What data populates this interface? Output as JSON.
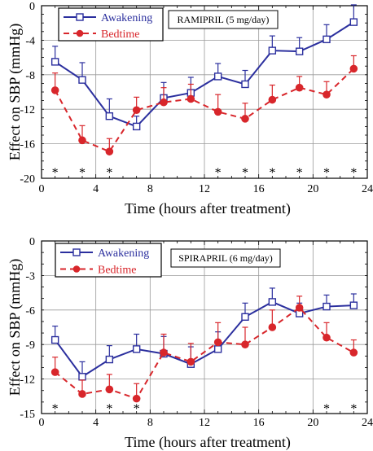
{
  "colors": {
    "awakening": "#2b2f9e",
    "bedtime": "#d8262b",
    "grid": "#9a9a9a",
    "axis": "#000000"
  },
  "chart_data": [
    {
      "type": "line",
      "title": "RAMIPRIL (5 mg/day)",
      "xlabel": "Time (hours after treatment)",
      "ylabel": "Effect on SBP (mmHg)",
      "xlim": [
        0,
        24
      ],
      "ylim": [
        -20,
        0
      ],
      "xticks": [
        "0",
        "4",
        "8",
        "12",
        "16",
        "20",
        "24"
      ],
      "yticks": [
        "0",
        "-4",
        "-8",
        "-12",
        "-16",
        "-20"
      ],
      "grid": true,
      "legend_position": "top-left",
      "x": [
        1,
        3,
        5,
        7,
        9,
        11,
        13,
        15,
        17,
        19,
        21,
        23
      ],
      "series": [
        {
          "name": "Awakening",
          "marker": "open-square",
          "line": "solid",
          "values": [
            -6.5,
            -8.6,
            -12.8,
            -14.0,
            -10.7,
            -10.1,
            -8.2,
            -9.1,
            -5.2,
            -5.3,
            -3.9,
            -1.9
          ],
          "errors": [
            1.8,
            2.0,
            2.0,
            1.2,
            1.8,
            1.8,
            1.5,
            1.6,
            1.7,
            1.6,
            1.7,
            2.0
          ]
        },
        {
          "name": "Bedtime",
          "marker": "filled-circle",
          "line": "dashed",
          "values": [
            -9.8,
            -15.6,
            -16.9,
            -12.1,
            -11.2,
            -10.8,
            -12.3,
            -13.1,
            -10.9,
            -9.5,
            -10.3,
            -7.3
          ],
          "errors": [
            2.0,
            1.7,
            1.5,
            1.5,
            1.7,
            1.7,
            2.0,
            1.8,
            1.7,
            1.3,
            1.5,
            1.5
          ]
        }
      ],
      "significance_marker": "*",
      "significance_x": [
        1,
        3,
        5,
        13,
        15,
        17,
        19,
        21,
        23
      ]
    },
    {
      "type": "line",
      "title": "SPIRAPRIL (6 mg/day)",
      "xlabel": "Time (hours after treatment)",
      "ylabel": "Effect on SBP (mmHg)",
      "xlim": [
        0,
        24
      ],
      "ylim": [
        -15,
        0
      ],
      "xticks": [
        "0",
        "4",
        "8",
        "12",
        "16",
        "20",
        "24"
      ],
      "yticks": [
        "0",
        "-3",
        "-6",
        "-9",
        "-12",
        "-15"
      ],
      "grid": true,
      "legend_position": "top-left",
      "x": [
        1,
        3,
        5,
        7,
        9,
        11,
        13,
        15,
        17,
        19,
        21,
        23
      ],
      "series": [
        {
          "name": "Awakening",
          "marker": "open-square",
          "line": "solid",
          "values": [
            -8.6,
            -11.8,
            -10.3,
            -9.4,
            -9.8,
            -10.7,
            -9.4,
            -6.6,
            -5.3,
            -6.3,
            -5.7,
            -5.6
          ],
          "errors": [
            1.2,
            1.3,
            1.2,
            1.3,
            1.5,
            1.5,
            1.5,
            1.2,
            1.2,
            0.9,
            1.0,
            1.0
          ]
        },
        {
          "name": "Bedtime",
          "marker": "filled-circle",
          "line": "dashed",
          "values": [
            -11.4,
            -13.3,
            -12.9,
            -13.7,
            -9.7,
            -10.5,
            -8.8,
            -9.0,
            -7.5,
            -5.8,
            -8.4,
            -9.7
          ],
          "errors": [
            1.3,
            1.2,
            1.3,
            1.3,
            1.6,
            1.6,
            1.7,
            1.5,
            1.5,
            1.0,
            1.3,
            1.1
          ]
        }
      ],
      "significance_marker": "*",
      "significance_x": [
        1,
        5,
        7,
        21,
        23
      ]
    }
  ]
}
